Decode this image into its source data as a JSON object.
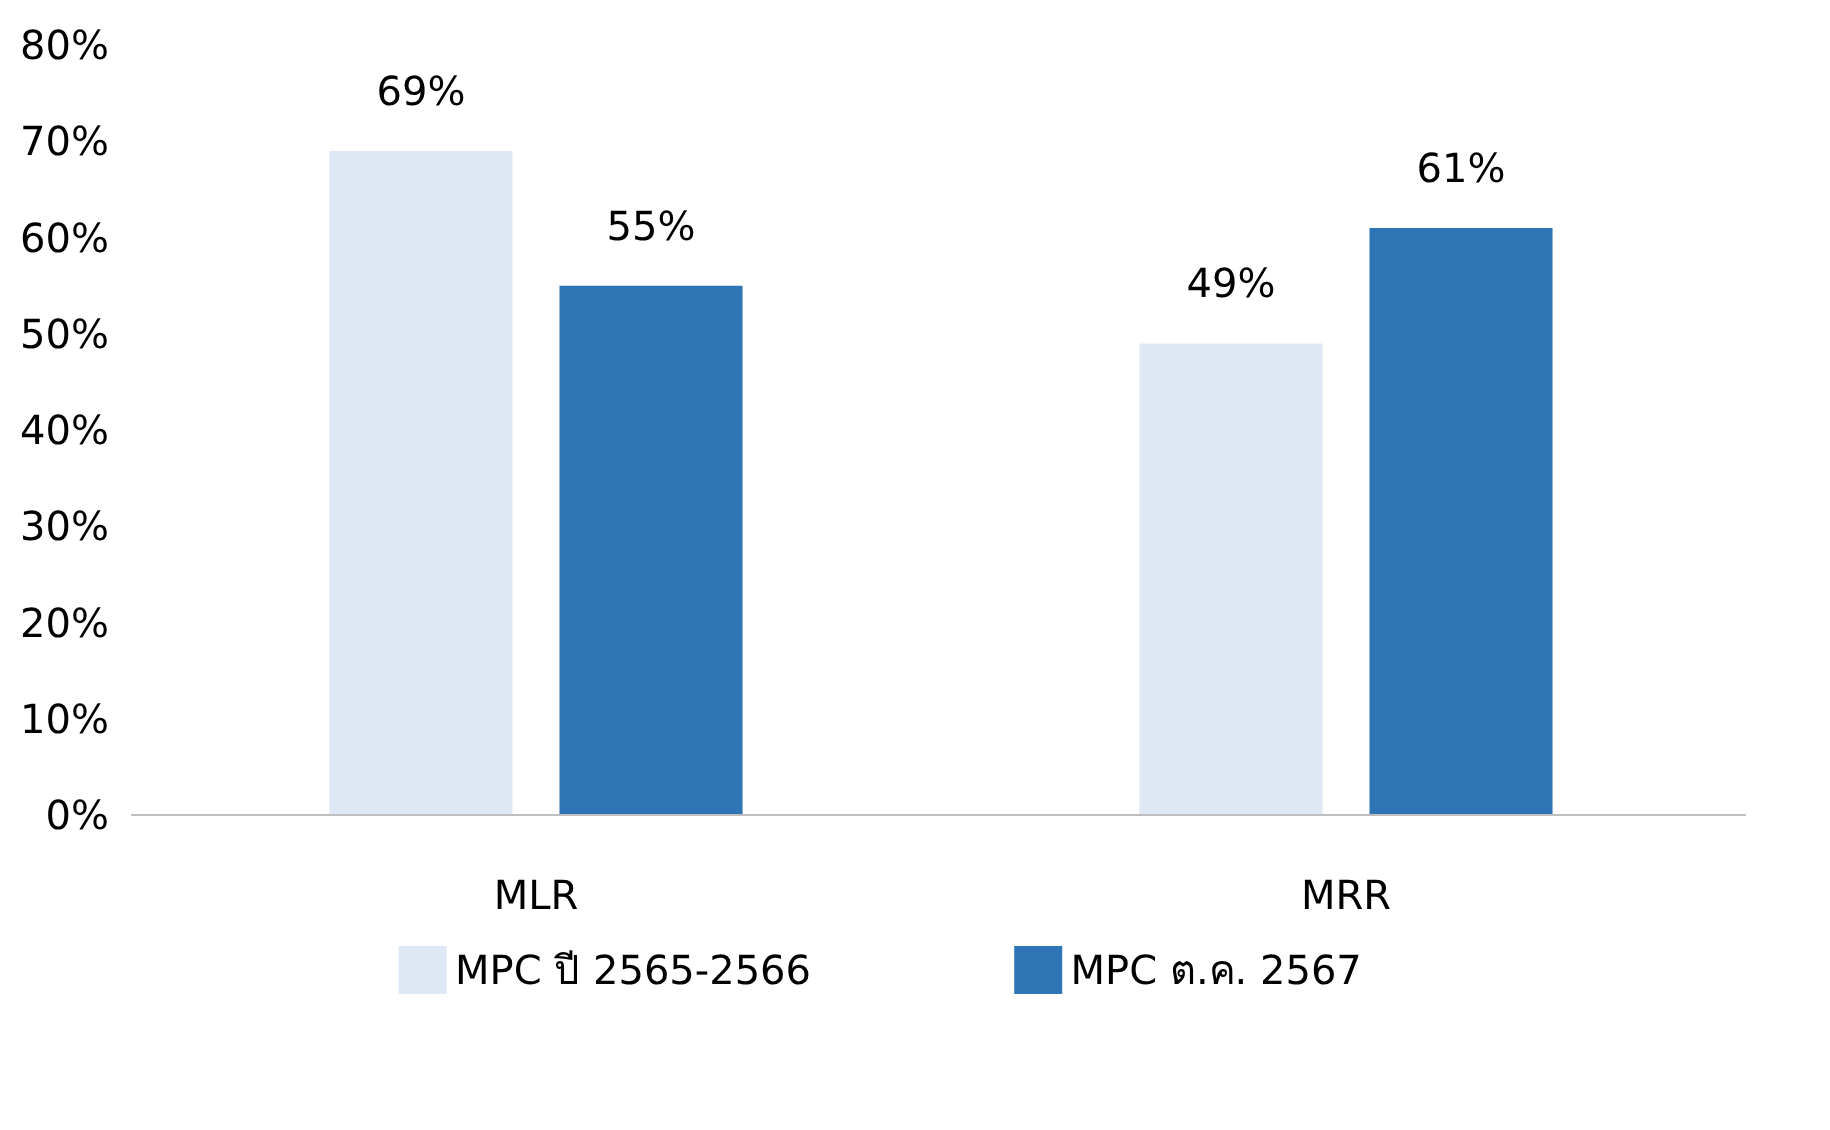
{
  "chart_data": {
    "type": "bar",
    "categories": [
      "MLR",
      "MRR"
    ],
    "series": [
      {
        "name": "MPC ปี 2565-2566",
        "color": "#dde8f4",
        "values": [
          69,
          49
        ],
        "value_labels": [
          "69%",
          "49%"
        ]
      },
      {
        "name": "MPC ต.ค. 2567",
        "color": "#2e75b6",
        "values": [
          55,
          61
        ],
        "value_labels": [
          "55%",
          "61%"
        ]
      }
    ],
    "ylim": [
      0,
      80
    ],
    "yticks": [
      {
        "value": 0,
        "label": "0%"
      },
      {
        "value": 10,
        "label": "10%"
      },
      {
        "value": 20,
        "label": "20%"
      },
      {
        "value": 30,
        "label": "30%"
      },
      {
        "value": 40,
        "label": "40%"
      },
      {
        "value": 50,
        "label": "50%"
      },
      {
        "value": 60,
        "label": "60%"
      },
      {
        "value": 70,
        "label": "70%"
      },
      {
        "value": 80,
        "label": "80%"
      }
    ],
    "grid": false,
    "legend": "bottom"
  }
}
